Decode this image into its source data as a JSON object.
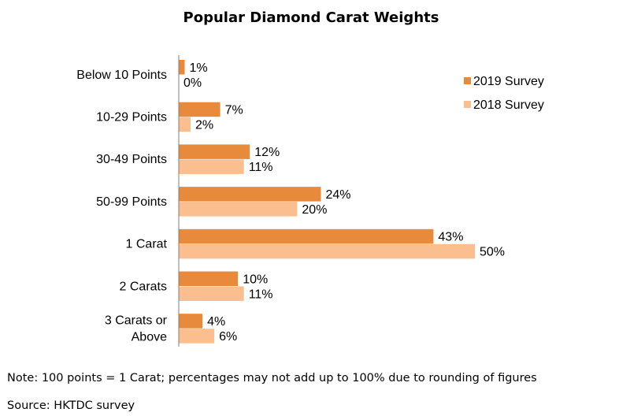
{
  "chart_data": {
    "type": "bar",
    "orientation": "horizontal",
    "title": "Popular Diamond Carat Weights",
    "categories": [
      [
        "Below 10 Points"
      ],
      [
        "10-29 Points"
      ],
      [
        "30-49 Points"
      ],
      [
        "50-99 Points"
      ],
      [
        "1 Carat"
      ],
      [
        "2 Carats"
      ],
      [
        "3 Carats or",
        "Above"
      ]
    ],
    "series": [
      {
        "name": "2019 Survey",
        "color": "#E88A3C",
        "values": [
          1,
          7,
          12,
          24,
          43,
          10,
          4
        ]
      },
      {
        "name": "2018 Survey",
        "color": "#FBBE8E",
        "values": [
          0,
          2,
          11,
          20,
          50,
          11,
          6
        ]
      }
    ],
    "value_suffix": "%",
    "xlim": [
      0,
      50
    ],
    "grid": false,
    "legend_position": "top-right"
  },
  "footer": {
    "note": "Note: 100 points = 1 Carat; percentages may not add up to 100% due to rounding of figures",
    "source": "Source: HKTDC survey"
  }
}
